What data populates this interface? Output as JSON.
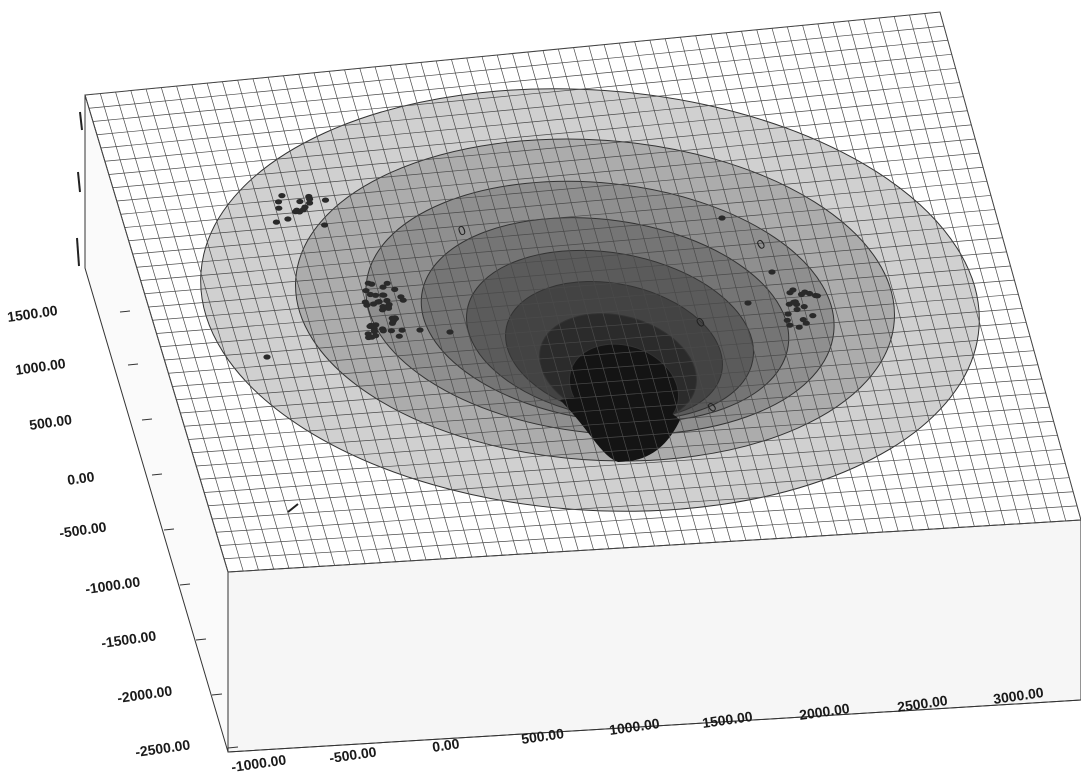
{
  "chart_data": {
    "type": "3d-surface",
    "title": "",
    "xlabel": "",
    "ylabel": "",
    "zlabel": "",
    "x_ticks": [
      "-1000.00",
      "-500.00",
      "0.00",
      "500.00",
      "1000.00",
      "1500.00",
      "2000.00",
      "2500.00",
      "3000.00"
    ],
    "z_ticks": [
      "1500.00",
      "1000.00",
      "500.00",
      "0.00",
      "-500.00",
      "-1000.00",
      "-1500.00",
      "-2000.00",
      "-2500.00"
    ],
    "xlim": [
      -1000,
      3000
    ],
    "zlim": [
      -2500,
      1500
    ],
    "grid": true,
    "contour_labels": [
      "0",
      "0",
      "0",
      "0"
    ],
    "colors": {
      "grid": "#4a4a4a",
      "surface_light": "#d0d0d0",
      "surface_dark": "#141414",
      "points": "#2a2a2a"
    }
  }
}
